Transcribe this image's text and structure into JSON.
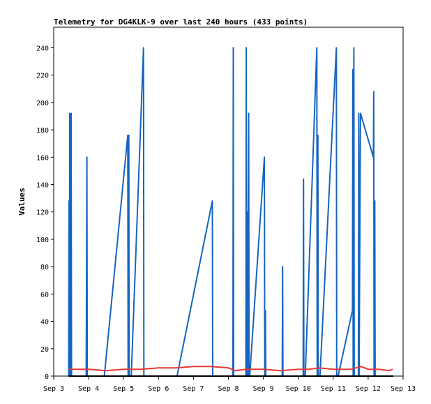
{
  "chart_data": {
    "type": "line",
    "title": "Telemetry for DG4KLK-9 over last 240 hours (433 points)",
    "xlabel": "",
    "ylabel": "Values",
    "x_tick_labels": [
      "Sep 3",
      "Sep 4",
      "Sep 5",
      "Sep 6",
      "Sep 7",
      "Sep 8",
      "Sep 9",
      "Sep 10",
      "Sep 11",
      "Sep 12",
      "Sep 13"
    ],
    "y_ticks": [
      0,
      20,
      40,
      60,
      80,
      100,
      120,
      140,
      160,
      180,
      200,
      220,
      240
    ],
    "xlim": [
      3.0,
      13.0
    ],
    "ylim": [
      0,
      255
    ],
    "x_unit": "day of September",
    "grid": false,
    "series": [
      {
        "color": "#1565c0",
        "points": [
          [
            3.43,
            0
          ],
          [
            3.44,
            128
          ],
          [
            3.45,
            0
          ],
          [
            3.46,
            192
          ],
          [
            3.48,
            0
          ],
          [
            3.5,
            192
          ],
          [
            3.51,
            0
          ],
          [
            3.93,
            0
          ],
          [
            3.95,
            160
          ],
          [
            3.96,
            0
          ],
          [
            4.45,
            0
          ],
          [
            5.12,
            176
          ],
          [
            5.13,
            0
          ],
          [
            5.15,
            176
          ],
          [
            5.16,
            0
          ],
          [
            5.22,
            0
          ],
          [
            5.57,
            240
          ],
          [
            5.58,
            0
          ],
          [
            6.53,
            0
          ],
          [
            7.54,
            128
          ],
          [
            7.55,
            0
          ],
          [
            8.13,
            0
          ],
          [
            8.14,
            240
          ],
          [
            8.15,
            0
          ],
          [
            8.5,
            0
          ],
          [
            8.51,
            240
          ],
          [
            8.52,
            0
          ],
          [
            8.54,
            120
          ],
          [
            8.55,
            0
          ],
          [
            8.58,
            192
          ],
          [
            8.59,
            0
          ],
          [
            8.61,
            0
          ],
          [
            9.03,
            160
          ],
          [
            9.04,
            0
          ],
          [
            9.06,
            48
          ],
          [
            9.07,
            0
          ],
          [
            9.54,
            0
          ],
          [
            9.55,
            80
          ],
          [
            9.56,
            0
          ],
          [
            10.14,
            0
          ],
          [
            10.15,
            144
          ],
          [
            10.16,
            0
          ],
          [
            10.2,
            0
          ],
          [
            10.53,
            240
          ],
          [
            10.54,
            0
          ],
          [
            10.56,
            176
          ],
          [
            10.57,
            0
          ],
          [
            10.62,
            0
          ],
          [
            11.09,
            240
          ],
          [
            11.1,
            0
          ],
          [
            11.14,
            0
          ],
          [
            11.55,
            48
          ],
          [
            11.56,
            224
          ],
          [
            11.57,
            0
          ],
          [
            11.59,
            240
          ],
          [
            11.6,
            0
          ],
          [
            11.72,
            0
          ],
          [
            11.73,
            192
          ],
          [
            11.74,
            0
          ],
          [
            11.76,
            96
          ],
          [
            11.78,
            192
          ],
          [
            12.15,
            160
          ],
          [
            12.16,
            208
          ],
          [
            12.17,
            0
          ],
          [
            12.19,
            128
          ],
          [
            12.2,
            0
          ]
        ]
      },
      {
        "color": "#e53935",
        "points": [
          [
            3.43,
            5
          ],
          [
            4.0,
            5
          ],
          [
            4.5,
            4
          ],
          [
            5.0,
            5
          ],
          [
            5.5,
            5
          ],
          [
            6.0,
            6
          ],
          [
            6.5,
            6
          ],
          [
            7.0,
            7
          ],
          [
            7.5,
            7
          ],
          [
            8.0,
            6
          ],
          [
            8.2,
            4
          ],
          [
            8.5,
            5
          ],
          [
            9.0,
            5
          ],
          [
            9.5,
            4
          ],
          [
            10.0,
            5
          ],
          [
            10.3,
            5
          ],
          [
            10.6,
            6
          ],
          [
            11.0,
            5
          ],
          [
            11.5,
            5
          ],
          [
            11.8,
            7
          ],
          [
            12.0,
            5
          ],
          [
            12.3,
            5
          ],
          [
            12.6,
            4
          ],
          [
            12.7,
            5
          ]
        ]
      },
      {
        "color": "#000000",
        "points": [
          [
            3.43,
            0
          ],
          [
            12.72,
            0
          ]
        ]
      }
    ]
  }
}
